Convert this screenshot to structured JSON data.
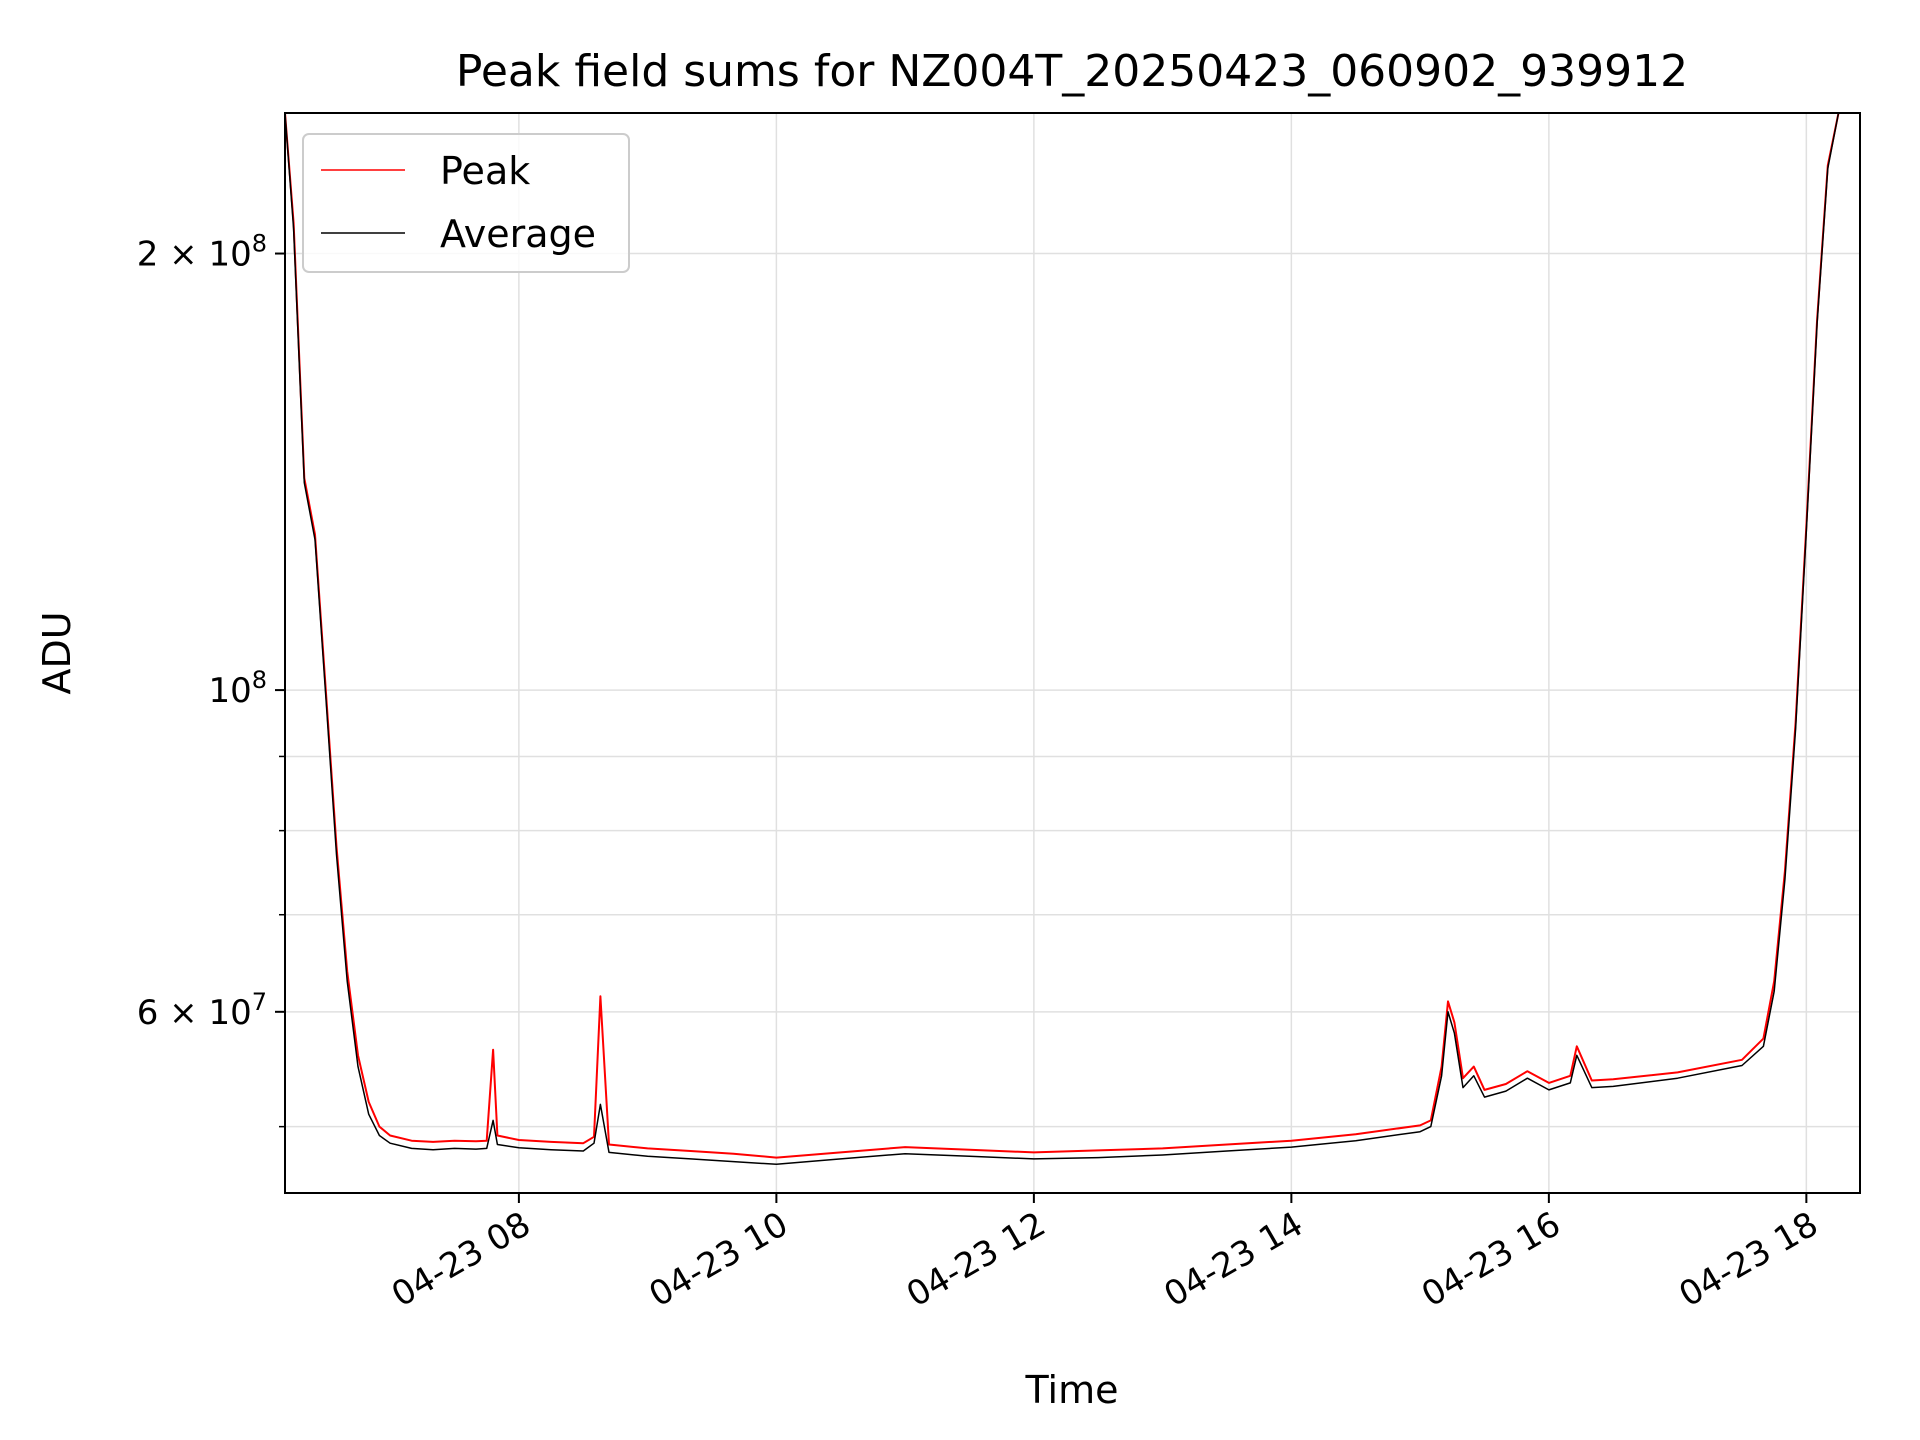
{
  "chart_data": {
    "type": "line",
    "title": "Peak field sums for NZ004T_20250423_060902_939912",
    "xlabel": "Time",
    "ylabel": "ADU",
    "yscale": "log",
    "grid": true,
    "legend_position": "top-left",
    "xlim": [
      "2025-04-23 06:11",
      "2025-04-23 18:25"
    ],
    "ylim": [
      45000000,
      250000000
    ],
    "x_ticks": [
      {
        "label": "04-23 08",
        "x": "2025-04-23 08:00"
      },
      {
        "label": "04-23 10",
        "x": "2025-04-23 10:00"
      },
      {
        "label": "04-23 12",
        "x": "2025-04-23 12:00"
      },
      {
        "label": "04-23 14",
        "x": "2025-04-23 14:00"
      },
      {
        "label": "04-23 16",
        "x": "2025-04-23 16:00"
      },
      {
        "label": "04-23 18",
        "x": "2025-04-23 18:00"
      }
    ],
    "y_ticks": [
      {
        "base": "2 × 10",
        "exp": "8",
        "value": 200000000
      },
      {
        "base": "10",
        "exp": "8",
        "value": 100000000
      },
      {
        "base": "6 × 10",
        "exp": "7",
        "value": 60000000
      }
    ],
    "y_minor_ticks": [
      50000000,
      70000000,
      80000000,
      90000000
    ],
    "series": [
      {
        "name": "Peak",
        "color": "#ff0000",
        "points": [
          [
            "2025-04-23 06:11",
            250000000
          ],
          [
            "2025-04-23 06:15",
            210000000
          ],
          [
            "2025-04-23 06:20",
            140000000
          ],
          [
            "2025-04-23 06:25",
            128000000
          ],
          [
            "2025-04-23 06:30",
            100000000
          ],
          [
            "2025-04-23 06:35",
            78000000
          ],
          [
            "2025-04-23 06:40",
            64000000
          ],
          [
            "2025-04-23 06:45",
            56000000
          ],
          [
            "2025-04-23 06:50",
            52000000
          ],
          [
            "2025-04-23 06:55",
            50000000
          ],
          [
            "2025-04-23 07:00",
            49300000
          ],
          [
            "2025-04-23 07:10",
            48900000
          ],
          [
            "2025-04-23 07:20",
            48800000
          ],
          [
            "2025-04-23 07:30",
            48900000
          ],
          [
            "2025-04-23 07:40",
            48850000
          ],
          [
            "2025-04-23 07:45",
            48900000
          ],
          [
            "2025-04-23 07:48",
            56500000
          ],
          [
            "2025-04-23 07:50",
            49300000
          ],
          [
            "2025-04-23 08:00",
            48950000
          ],
          [
            "2025-04-23 08:15",
            48800000
          ],
          [
            "2025-04-23 08:30",
            48700000
          ],
          [
            "2025-04-23 08:35",
            49200000
          ],
          [
            "2025-04-23 08:38",
            61500000
          ],
          [
            "2025-04-23 08:42",
            48600000
          ],
          [
            "2025-04-23 09:00",
            48300000
          ],
          [
            "2025-04-23 09:20",
            48100000
          ],
          [
            "2025-04-23 09:40",
            47900000
          ],
          [
            "2025-04-23 10:00",
            47600000
          ],
          [
            "2025-04-23 10:30",
            48000000
          ],
          [
            "2025-04-23 11:00",
            48400000
          ],
          [
            "2025-04-23 11:30",
            48200000
          ],
          [
            "2025-04-23 12:00",
            48000000
          ],
          [
            "2025-04-23 12:30",
            48150000
          ],
          [
            "2025-04-23 13:00",
            48300000
          ],
          [
            "2025-04-23 13:30",
            48600000
          ],
          [
            "2025-04-23 14:00",
            48900000
          ],
          [
            "2025-04-23 14:30",
            49400000
          ],
          [
            "2025-04-23 15:00",
            50100000
          ],
          [
            "2025-04-23 15:05",
            50500000
          ],
          [
            "2025-04-23 15:10",
            55000000
          ],
          [
            "2025-04-23 15:13",
            61000000
          ],
          [
            "2025-04-23 15:16",
            59000000
          ],
          [
            "2025-04-23 15:20",
            54000000
          ],
          [
            "2025-04-23 15:25",
            55000000
          ],
          [
            "2025-04-23 15:30",
            53000000
          ],
          [
            "2025-04-23 15:40",
            53500000
          ],
          [
            "2025-04-23 15:50",
            54600000
          ],
          [
            "2025-04-23 16:00",
            53600000
          ],
          [
            "2025-04-23 16:10",
            54200000
          ],
          [
            "2025-04-23 16:13",
            56800000
          ],
          [
            "2025-04-23 16:20",
            53800000
          ],
          [
            "2025-04-23 16:30",
            53900000
          ],
          [
            "2025-04-23 17:00",
            54500000
          ],
          [
            "2025-04-23 17:30",
            55600000
          ],
          [
            "2025-04-23 17:40",
            57500000
          ],
          [
            "2025-04-23 17:45",
            63000000
          ],
          [
            "2025-04-23 17:50",
            75000000
          ],
          [
            "2025-04-23 17:55",
            95000000
          ],
          [
            "2025-04-23 18:00",
            130000000
          ],
          [
            "2025-04-23 18:05",
            180000000
          ],
          [
            "2025-04-23 18:10",
            230000000
          ],
          [
            "2025-04-23 18:15",
            250000000
          ]
        ]
      },
      {
        "name": "Average",
        "color": "#000000",
        "points": [
          [
            "2025-04-23 06:11",
            250000000
          ],
          [
            "2025-04-23 06:15",
            208000000
          ],
          [
            "2025-04-23 06:20",
            139000000
          ],
          [
            "2025-04-23 06:25",
            127000000
          ],
          [
            "2025-04-23 06:30",
            99000000
          ],
          [
            "2025-04-23 06:35",
            77000000
          ],
          [
            "2025-04-23 06:40",
            63000000
          ],
          [
            "2025-04-23 06:45",
            55000000
          ],
          [
            "2025-04-23 06:50",
            51000000
          ],
          [
            "2025-04-23 06:55",
            49300000
          ],
          [
            "2025-04-23 07:00",
            48700000
          ],
          [
            "2025-04-23 07:10",
            48300000
          ],
          [
            "2025-04-23 07:20",
            48200000
          ],
          [
            "2025-04-23 07:30",
            48300000
          ],
          [
            "2025-04-23 07:40",
            48250000
          ],
          [
            "2025-04-23 07:45",
            48300000
          ],
          [
            "2025-04-23 07:48",
            50500000
          ],
          [
            "2025-04-23 07:50",
            48600000
          ],
          [
            "2025-04-23 08:00",
            48350000
          ],
          [
            "2025-04-23 08:15",
            48200000
          ],
          [
            "2025-04-23 08:30",
            48100000
          ],
          [
            "2025-04-23 08:35",
            48700000
          ],
          [
            "2025-04-23 08:38",
            51800000
          ],
          [
            "2025-04-23 08:42",
            48000000
          ],
          [
            "2025-04-23 09:00",
            47700000
          ],
          [
            "2025-04-23 09:20",
            47500000
          ],
          [
            "2025-04-23 09:40",
            47300000
          ],
          [
            "2025-04-23 10:00",
            47100000
          ],
          [
            "2025-04-23 10:30",
            47500000
          ],
          [
            "2025-04-23 11:00",
            47900000
          ],
          [
            "2025-04-23 11:30",
            47700000
          ],
          [
            "2025-04-23 12:00",
            47500000
          ],
          [
            "2025-04-23 12:30",
            47600000
          ],
          [
            "2025-04-23 13:00",
            47800000
          ],
          [
            "2025-04-23 13:30",
            48100000
          ],
          [
            "2025-04-23 14:00",
            48400000
          ],
          [
            "2025-04-23 14:30",
            48900000
          ],
          [
            "2025-04-23 15:00",
            49600000
          ],
          [
            "2025-04-23 15:05",
            50000000
          ],
          [
            "2025-04-23 15:10",
            54200000
          ],
          [
            "2025-04-23 15:13",
            60000000
          ],
          [
            "2025-04-23 15:16",
            58000000
          ],
          [
            "2025-04-23 15:20",
            53200000
          ],
          [
            "2025-04-23 15:25",
            54200000
          ],
          [
            "2025-04-23 15:30",
            52400000
          ],
          [
            "2025-04-23 15:40",
            52900000
          ],
          [
            "2025-04-23 15:50",
            54000000
          ],
          [
            "2025-04-23 16:00",
            53000000
          ],
          [
            "2025-04-23 16:10",
            53600000
          ],
          [
            "2025-04-23 16:13",
            56000000
          ],
          [
            "2025-04-23 16:20",
            53200000
          ],
          [
            "2025-04-23 16:30",
            53300000
          ],
          [
            "2025-04-23 17:00",
            54000000
          ],
          [
            "2025-04-23 17:30",
            55100000
          ],
          [
            "2025-04-23 17:40",
            56800000
          ],
          [
            "2025-04-23 17:45",
            62000000
          ],
          [
            "2025-04-23 17:50",
            74000000
          ],
          [
            "2025-04-23 17:55",
            94000000
          ],
          [
            "2025-04-23 18:00",
            129000000
          ],
          [
            "2025-04-23 18:05",
            179000000
          ],
          [
            "2025-04-23 18:10",
            229000000
          ],
          [
            "2025-04-23 18:15",
            250000000
          ]
        ]
      }
    ]
  }
}
